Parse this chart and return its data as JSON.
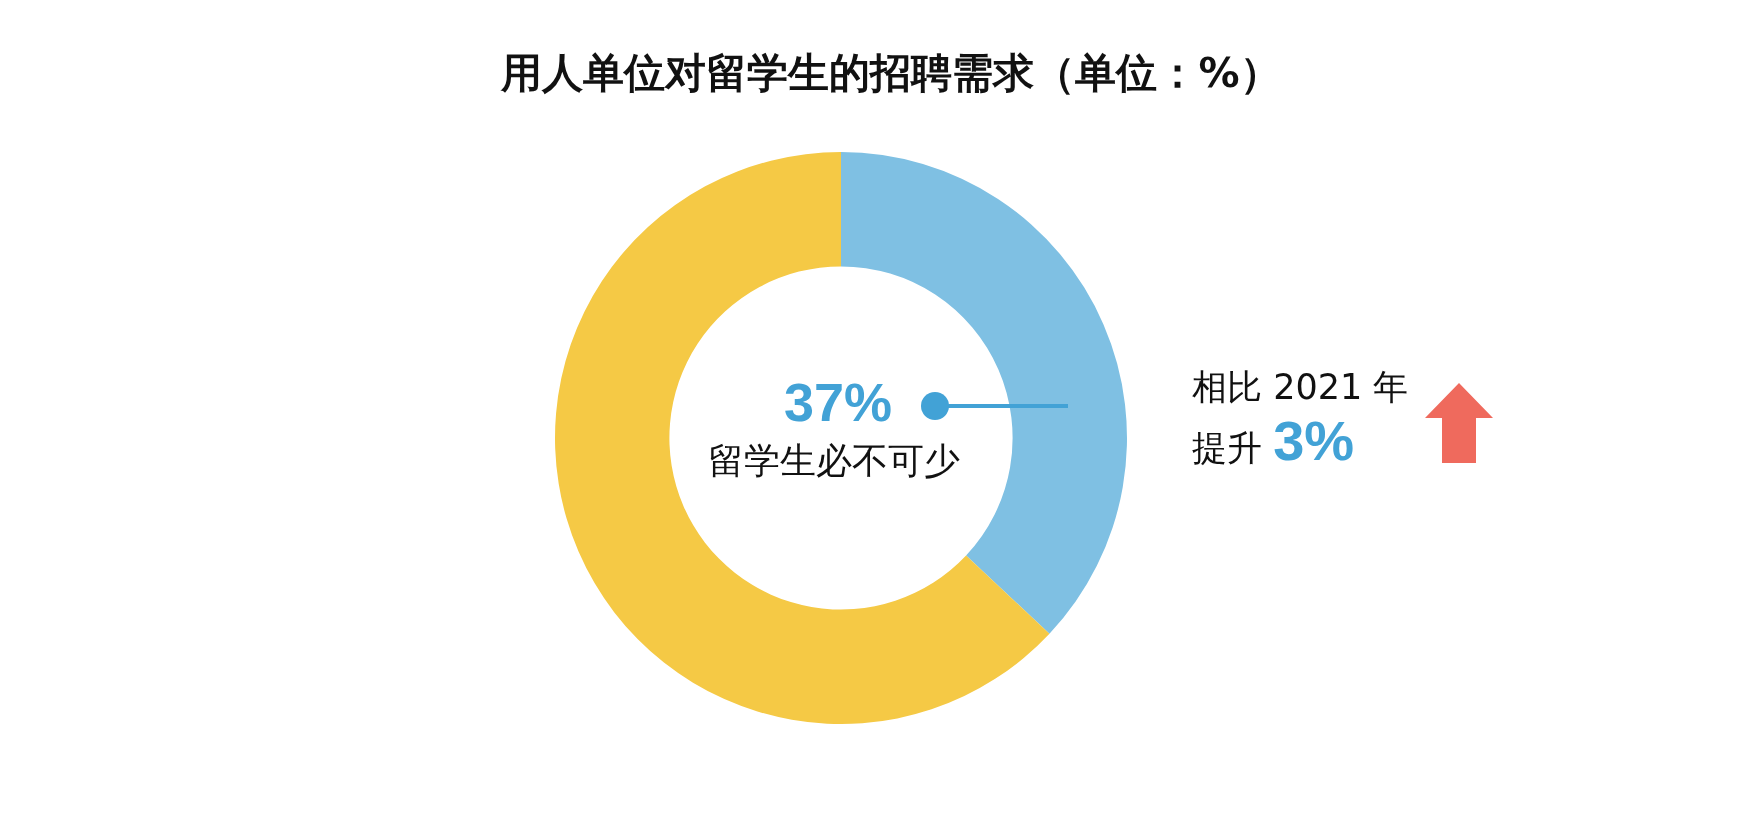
{
  "chart_data": {
    "type": "donut",
    "title": "用人单位对留学生的招聘需求（单位：%）",
    "categories": [
      "留学生必不可少",
      null
    ],
    "values": [
      37,
      63
    ],
    "colors": [
      "#7fc0e3",
      "#f5c945"
    ],
    "value_labels": [
      "37%",
      null
    ],
    "annotations": [
      "相比 2021 年",
      "提升 3%"
    ],
    "legend": false
  }
}
